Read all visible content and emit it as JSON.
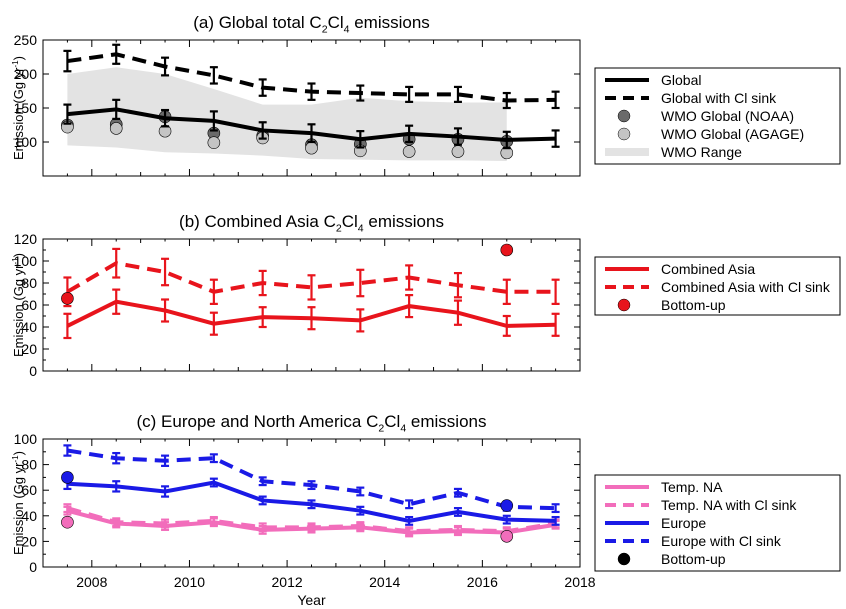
{
  "xlabel": "Year",
  "x_ticks": [
    2008,
    2010,
    2012,
    2014,
    2016,
    2018
  ],
  "xlim": [
    2007,
    2018
  ],
  "years": [
    2007.5,
    2008.5,
    2009.5,
    2010.5,
    2011.5,
    2012.5,
    2013.5,
    2014.5,
    2015.5,
    2016.5,
    2017.5
  ],
  "chart_data": [
    {
      "type": "line",
      "panel": "a",
      "title_parts": [
        "(a) Global total C",
        "2",
        "Cl",
        "4",
        " emissions"
      ],
      "ylabel_parts": [
        "Emission (Gg yr",
        "-1",
        ")"
      ],
      "ylim": [
        50,
        250
      ],
      "y_ticks": [
        100,
        150,
        200,
        250
      ],
      "series": [
        {
          "name": "Global",
          "color": "#000000",
          "dash": false,
          "x": [
            2007.5,
            2008.5,
            2009.5,
            2010.5,
            2011.5,
            2012.5,
            2013.5,
            2014.5,
            2015.5,
            2016.5,
            2017.5
          ],
          "values": [
            141,
            148,
            135,
            131,
            117,
            113,
            104,
            112,
            108,
            103,
            105
          ],
          "err": [
            14,
            14,
            12,
            14,
            12,
            13,
            12,
            12,
            12,
            12,
            12
          ]
        },
        {
          "name": "Global with Cl sink",
          "color": "#000000",
          "dash": true,
          "x": [
            2007.5,
            2008.5,
            2009.5,
            2010.5,
            2011.5,
            2012.5,
            2013.5,
            2014.5,
            2015.5,
            2016.5,
            2017.5
          ],
          "values": [
            219,
            229,
            211,
            198,
            180,
            174,
            172,
            170,
            170,
            161,
            162
          ],
          "err": [
            15,
            14,
            13,
            12,
            12,
            12,
            11,
            11,
            11,
            11,
            12
          ]
        }
      ],
      "points": [
        {
          "name": "WMO Global (NOAA)",
          "color": "#6a6a6a",
          "x": [
            2007.5,
            2008.5,
            2009.5,
            2010.5,
            2011.5,
            2012.5,
            2013.5,
            2014.5,
            2015.5,
            2016.5
          ],
          "values": [
            125,
            126,
            137,
            113,
            109,
            96,
            97,
            104,
            104,
            101
          ]
        },
        {
          "name": "WMO Global (AGAGE)",
          "color": "#c4c4c4",
          "x": [
            2007.5,
            2008.5,
            2009.5,
            2010.5,
            2011.5,
            2012.5,
            2013.5,
            2014.5,
            2015.5,
            2016.5
          ],
          "values": [
            122,
            120,
            116,
            99,
            106,
            91,
            87,
            86,
            86,
            84
          ]
        }
      ],
      "range": {
        "name": "WMO Range",
        "color": "#e3e3e3",
        "x": [
          2007.5,
          2008.5,
          2009.5,
          2010.5,
          2011.5,
          2012.5,
          2013.5,
          2014.5,
          2015.5,
          2016.5
        ],
        "upper": [
          200,
          210,
          200,
          178,
          155,
          155,
          165,
          160,
          158,
          158
        ],
        "lower": [
          95,
          92,
          85,
          83,
          80,
          75,
          74,
          73,
          73,
          72
        ]
      },
      "legend": {
        "placement": "right",
        "items": [
          {
            "label": "Global",
            "kind": "line",
            "color": "#000000",
            "dash": false
          },
          {
            "label": "Global with Cl sink",
            "kind": "line",
            "color": "#000000",
            "dash": true
          },
          {
            "label": "WMO Global (NOAA)",
            "kind": "dot",
            "color": "#6a6a6a"
          },
          {
            "label": "WMO Global (AGAGE)",
            "kind": "dot",
            "color": "#c4c4c4"
          },
          {
            "label": "WMO Range",
            "kind": "band",
            "color": "#e3e3e3"
          }
        ]
      }
    },
    {
      "type": "line",
      "panel": "b",
      "title_parts": [
        "(b) Combined Asia C",
        "2",
        "Cl",
        "4",
        " emissions"
      ],
      "ylabel_parts": [
        "Emission (Gg yr",
        "-1",
        ")"
      ],
      "ylim": [
        0,
        120
      ],
      "y_ticks": [
        0,
        10,
        20,
        30,
        40,
        50,
        60,
        70,
        80,
        90,
        100,
        110,
        120
      ],
      "y_tick_labels": [
        0,
        20,
        40,
        60,
        80,
        100,
        120
      ],
      "series": [
        {
          "name": "Combined Asia",
          "color": "#e8141c",
          "dash": false,
          "x": [
            2007.5,
            2008.5,
            2009.5,
            2010.5,
            2011.5,
            2012.5,
            2013.5,
            2014.5,
            2015.5,
            2016.5,
            2017.5
          ],
          "values": [
            41,
            63,
            55,
            43,
            49,
            48,
            46,
            59,
            53,
            41,
            42
          ],
          "err": [
            11,
            11,
            10,
            10,
            9,
            10,
            10,
            10,
            11,
            9,
            10
          ]
        },
        {
          "name": "Combined Asia with Cl sink",
          "color": "#e8141c",
          "dash": true,
          "x": [
            2007.5,
            2008.5,
            2009.5,
            2010.5,
            2011.5,
            2012.5,
            2013.5,
            2014.5,
            2015.5,
            2016.5,
            2017.5
          ],
          "values": [
            72,
            98,
            90,
            72,
            80,
            76,
            80,
            85,
            78,
            72,
            72
          ],
          "err": [
            13,
            13,
            12,
            11,
            11,
            11,
            12,
            11,
            11,
            11,
            11
          ]
        }
      ],
      "points": [
        {
          "name": "Bottom-up",
          "color": "#e8141c",
          "x": [
            2007.5,
            2016.5
          ],
          "values": [
            66,
            110
          ]
        }
      ],
      "legend": {
        "placement": "right",
        "items": [
          {
            "label": "Combined Asia",
            "kind": "line",
            "color": "#e8141c",
            "dash": false
          },
          {
            "label": "Combined Asia with Cl sink",
            "kind": "line",
            "color": "#e8141c",
            "dash": true
          },
          {
            "label": "Bottom-up",
            "kind": "dot",
            "color": "#e8141c"
          }
        ]
      }
    },
    {
      "type": "line",
      "panel": "c",
      "title_parts": [
        "(c) Europe and North America C",
        "2",
        "Cl",
        "4",
        " emissions"
      ],
      "ylabel_parts": [
        "Emission (Gg yr",
        "-1",
        ")"
      ],
      "ylim": [
        0,
        100
      ],
      "y_ticks": [
        0,
        10,
        20,
        30,
        40,
        50,
        60,
        70,
        80,
        90,
        100
      ],
      "y_tick_labels": [
        0,
        20,
        40,
        60,
        80,
        100
      ],
      "series": [
        {
          "name": "Temp. NA",
          "color": "#f26dbb",
          "dash": false,
          "x": [
            2007.5,
            2008.5,
            2009.5,
            2010.5,
            2011.5,
            2012.5,
            2013.5,
            2014.5,
            2015.5,
            2016.5,
            2017.5
          ],
          "values": [
            44,
            34,
            32,
            35,
            29,
            30,
            31,
            27,
            28,
            27,
            33
          ],
          "err": [
            3,
            3,
            3,
            3,
            3,
            3,
            3,
            3,
            3,
            3,
            3
          ]
        },
        {
          "name": "Temp. NA with Cl sink",
          "color": "#f26dbb",
          "dash": true,
          "x": [
            2007.5,
            2008.5,
            2009.5,
            2010.5,
            2011.5,
            2012.5,
            2013.5,
            2014.5,
            2015.5,
            2016.5,
            2017.5
          ],
          "values": [
            46,
            35,
            34,
            36,
            31,
            31,
            32,
            28,
            29,
            28,
            34
          ],
          "err": [
            3,
            3,
            3,
            3,
            3,
            3,
            3,
            3,
            3,
            3,
            3
          ]
        },
        {
          "name": "Europe",
          "color": "#1a1ae6",
          "dash": false,
          "x": [
            2007.5,
            2008.5,
            2009.5,
            2010.5,
            2011.5,
            2012.5,
            2013.5,
            2014.5,
            2015.5,
            2016.5,
            2017.5
          ],
          "values": [
            65,
            63,
            59,
            66,
            52,
            49,
            44,
            36,
            43,
            37,
            36
          ],
          "err": [
            4,
            4,
            4,
            3,
            3,
            3,
            3,
            3,
            3,
            3,
            3
          ]
        },
        {
          "name": "Europe with Cl sink",
          "color": "#1a1ae6",
          "dash": true,
          "x": [
            2007.5,
            2008.5,
            2009.5,
            2010.5,
            2011.5,
            2012.5,
            2013.5,
            2014.5,
            2015.5,
            2016.5,
            2017.5
          ],
          "values": [
            91,
            85,
            83,
            85,
            67,
            64,
            59,
            49,
            58,
            47,
            46
          ],
          "err": [
            4,
            4,
            4,
            3,
            3,
            3,
            3,
            3,
            3,
            3,
            3
          ]
        }
      ],
      "points": [
        {
          "name": "Bottom-up (Temp. NA)",
          "color": "#f26dbb",
          "x": [
            2007.5,
            2016.5
          ],
          "values": [
            35,
            24
          ]
        },
        {
          "name": "Bottom-up (Europe)",
          "color": "#1a1ae6",
          "x": [
            2007.5,
            2016.5
          ],
          "values": [
            70,
            48
          ]
        }
      ],
      "legend": {
        "placement": "right",
        "items": [
          {
            "label": "Temp. NA",
            "kind": "line",
            "color": "#f26dbb",
            "dash": false
          },
          {
            "label": "Temp. NA with Cl sink",
            "kind": "line",
            "color": "#f26dbb",
            "dash": true
          },
          {
            "label": "Europe",
            "kind": "line",
            "color": "#1a1ae6",
            "dash": false
          },
          {
            "label": "Europe with Cl sink",
            "kind": "line",
            "color": "#1a1ae6",
            "dash": true
          },
          {
            "label": "Bottom-up",
            "kind": "dot",
            "color": "#000000"
          }
        ]
      }
    }
  ]
}
